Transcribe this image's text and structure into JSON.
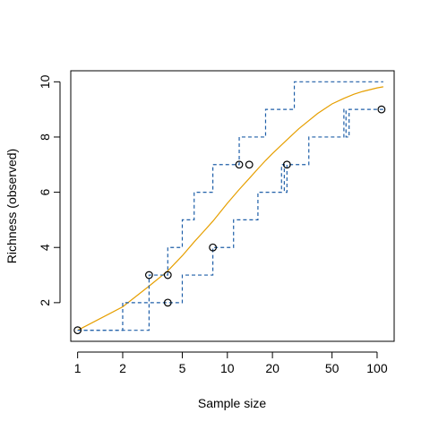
{
  "chart_data": {
    "type": "line",
    "xlabel": "Sample size",
    "ylabel": "Richness (observed)",
    "x_scale": "log",
    "xlim": [
      0.9,
      130
    ],
    "ylim": [
      0.6,
      10.4
    ],
    "grid": false,
    "x_ticks": [
      1,
      2,
      5,
      10,
      20,
      50,
      100
    ],
    "y_ticks": [
      2,
      4,
      6,
      8,
      10
    ],
    "colors": {
      "mean": "#E69F00",
      "envelope": "#1F5FA8",
      "points": "#000000",
      "frame": "#000000"
    },
    "series": [
      {
        "role": "mean",
        "style": "solid",
        "points": [
          [
            1,
            1.0
          ],
          [
            2,
            1.85
          ],
          [
            3,
            2.6
          ],
          [
            4,
            3.15
          ],
          [
            5,
            3.7
          ],
          [
            6,
            4.2
          ],
          [
            7,
            4.6
          ],
          [
            8,
            4.95
          ],
          [
            10,
            5.6
          ],
          [
            12,
            6.1
          ],
          [
            14,
            6.5
          ],
          [
            16,
            6.85
          ],
          [
            18,
            7.15
          ],
          [
            20,
            7.4
          ],
          [
            25,
            7.9
          ],
          [
            30,
            8.3
          ],
          [
            40,
            8.85
          ],
          [
            50,
            9.2
          ],
          [
            60,
            9.4
          ],
          [
            70,
            9.55
          ],
          [
            80,
            9.65
          ],
          [
            100,
            9.78
          ],
          [
            110,
            9.82
          ]
        ]
      },
      {
        "role": "upper",
        "style": "dashed-step",
        "points": [
          [
            1,
            1
          ],
          [
            2,
            2
          ],
          [
            3,
            3
          ],
          [
            4,
            4
          ],
          [
            5,
            5
          ],
          [
            6,
            6
          ],
          [
            7,
            6
          ],
          [
            8,
            7
          ],
          [
            11,
            7
          ],
          [
            12,
            8
          ],
          [
            16,
            8
          ],
          [
            18,
            9
          ],
          [
            26,
            9
          ],
          [
            28,
            10
          ],
          [
            110,
            10
          ]
        ]
      },
      {
        "role": "lower",
        "style": "dashed-step",
        "points": [
          [
            1,
            1
          ],
          [
            2,
            1
          ],
          [
            3,
            2
          ],
          [
            4,
            2
          ],
          [
            5,
            3
          ],
          [
            7,
            3
          ],
          [
            8,
            4
          ],
          [
            10,
            4
          ],
          [
            11,
            5
          ],
          [
            15,
            5
          ],
          [
            16,
            6
          ],
          [
            22,
            6
          ],
          [
            23,
            7
          ],
          [
            24,
            6
          ],
          [
            25,
            7
          ],
          [
            32,
            7
          ],
          [
            35,
            8
          ],
          [
            58,
            8
          ],
          [
            60,
            9
          ],
          [
            62,
            8
          ],
          [
            65,
            9
          ],
          [
            110,
            9
          ]
        ]
      }
    ],
    "observations": [
      {
        "x": 1,
        "y": 1
      },
      {
        "x": 3,
        "y": 3
      },
      {
        "x": 4,
        "y": 3
      },
      {
        "x": 4,
        "y": 2
      },
      {
        "x": 8,
        "y": 4
      },
      {
        "x": 12,
        "y": 7
      },
      {
        "x": 14,
        "y": 7
      },
      {
        "x": 25,
        "y": 7
      },
      {
        "x": 107,
        "y": 9
      }
    ]
  }
}
